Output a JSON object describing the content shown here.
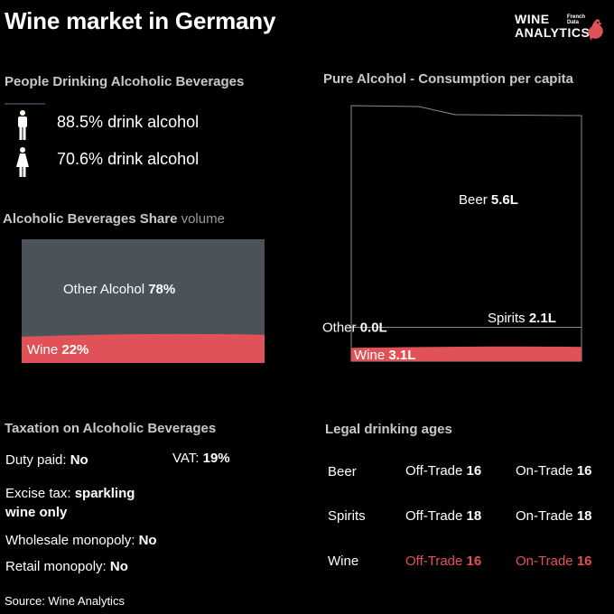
{
  "header": {
    "title": "Wine market in Germany",
    "logo_line1": "WINE",
    "logo_line2": "ANALYTICS",
    "logo_sub": "French\nData"
  },
  "people": {
    "title": "People Drinking Alcoholic Beverages",
    "rows": [
      {
        "icon": "male-person-icon",
        "value": "88.5%",
        "label": "drink alcohol"
      },
      {
        "icon": "female-person-icon",
        "value": "70.6%",
        "label": "drink alcohol"
      }
    ]
  },
  "share": {
    "title": "Alcoholic Beverages Share",
    "title_suffix": "volume"
  },
  "pure": {
    "title": "Pure Alcohol - Consumption per capita"
  },
  "taxation": {
    "title": "Taxation on Alcoholic Beverages",
    "items": [
      {
        "label": "Duty paid:",
        "value": "No"
      },
      {
        "label": "VAT:",
        "value": "19%"
      },
      {
        "label": "Excise tax:",
        "value": "sparkling wine only"
      },
      {
        "label": "Wholesale monopoly:",
        "value": "No"
      },
      {
        "label": "Retail monopoly:",
        "value": "No"
      }
    ]
  },
  "legal": {
    "title": "Legal drinking ages",
    "off_label": "Off-Trade",
    "on_label": "On-Trade",
    "rows": [
      {
        "drink": "Beer",
        "off": "16",
        "on": "16",
        "highlight": false
      },
      {
        "drink": "Spirits",
        "off": "18",
        "on": "18",
        "highlight": false
      },
      {
        "drink": "Wine",
        "off": "16",
        "on": "16",
        "highlight": true
      }
    ]
  },
  "source": "Source: Wine  Analytics",
  "colors": {
    "wine": "#e05257",
    "other": "#4b525a",
    "background": "#000000",
    "outline": "#8a8a8a"
  },
  "chart_data": [
    {
      "type": "area",
      "title": "Alcoholic Beverages Share",
      "subtitle": "volume",
      "unit": "%",
      "series": [
        {
          "name": "Other Alcohol",
          "values": [
            78
          ]
        },
        {
          "name": "Wine",
          "values": [
            22
          ]
        }
      ]
    },
    {
      "type": "area",
      "title": "Pure Alcohol - Consumption per capita",
      "unit": "L",
      "series": [
        {
          "name": "Beer",
          "value": 5.6
        },
        {
          "name": "Other",
          "value": 0.0
        },
        {
          "name": "Spirits",
          "value": 2.1
        },
        {
          "name": "Wine",
          "value": 3.1
        }
      ]
    }
  ]
}
